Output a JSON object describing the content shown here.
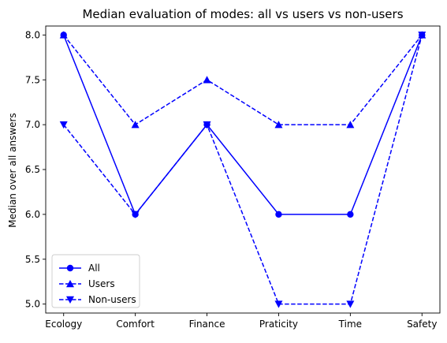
{
  "chart_data": {
    "type": "line",
    "title": "Median evaluation of modes: all vs users vs non-users",
    "xlabel": "",
    "ylabel": "Median over all answers",
    "categories": [
      "Ecology",
      "Comfort",
      "Finance",
      "Praticity",
      "Time",
      "Safety"
    ],
    "ylim": [
      4.9,
      8.1
    ],
    "yticks": [
      "5.0",
      "5.5",
      "6.0",
      "6.5",
      "7.0",
      "7.5",
      "8.0"
    ],
    "grid": false,
    "legend_position": "lower-left",
    "series": [
      {
        "name": "All",
        "values": [
          8,
          6,
          7,
          6,
          6,
          8
        ],
        "color": "#0000ff",
        "linestyle": "solid",
        "marker": "circle"
      },
      {
        "name": "Users",
        "values": [
          8,
          7,
          7.5,
          7,
          7,
          8
        ],
        "color": "#0000ff",
        "linestyle": "dashed",
        "marker": "triangle-up"
      },
      {
        "name": "Non-users",
        "values": [
          7,
          6,
          7,
          5,
          5,
          8
        ],
        "color": "#0000ff",
        "linestyle": "dashed",
        "marker": "triangle-down"
      }
    ]
  }
}
